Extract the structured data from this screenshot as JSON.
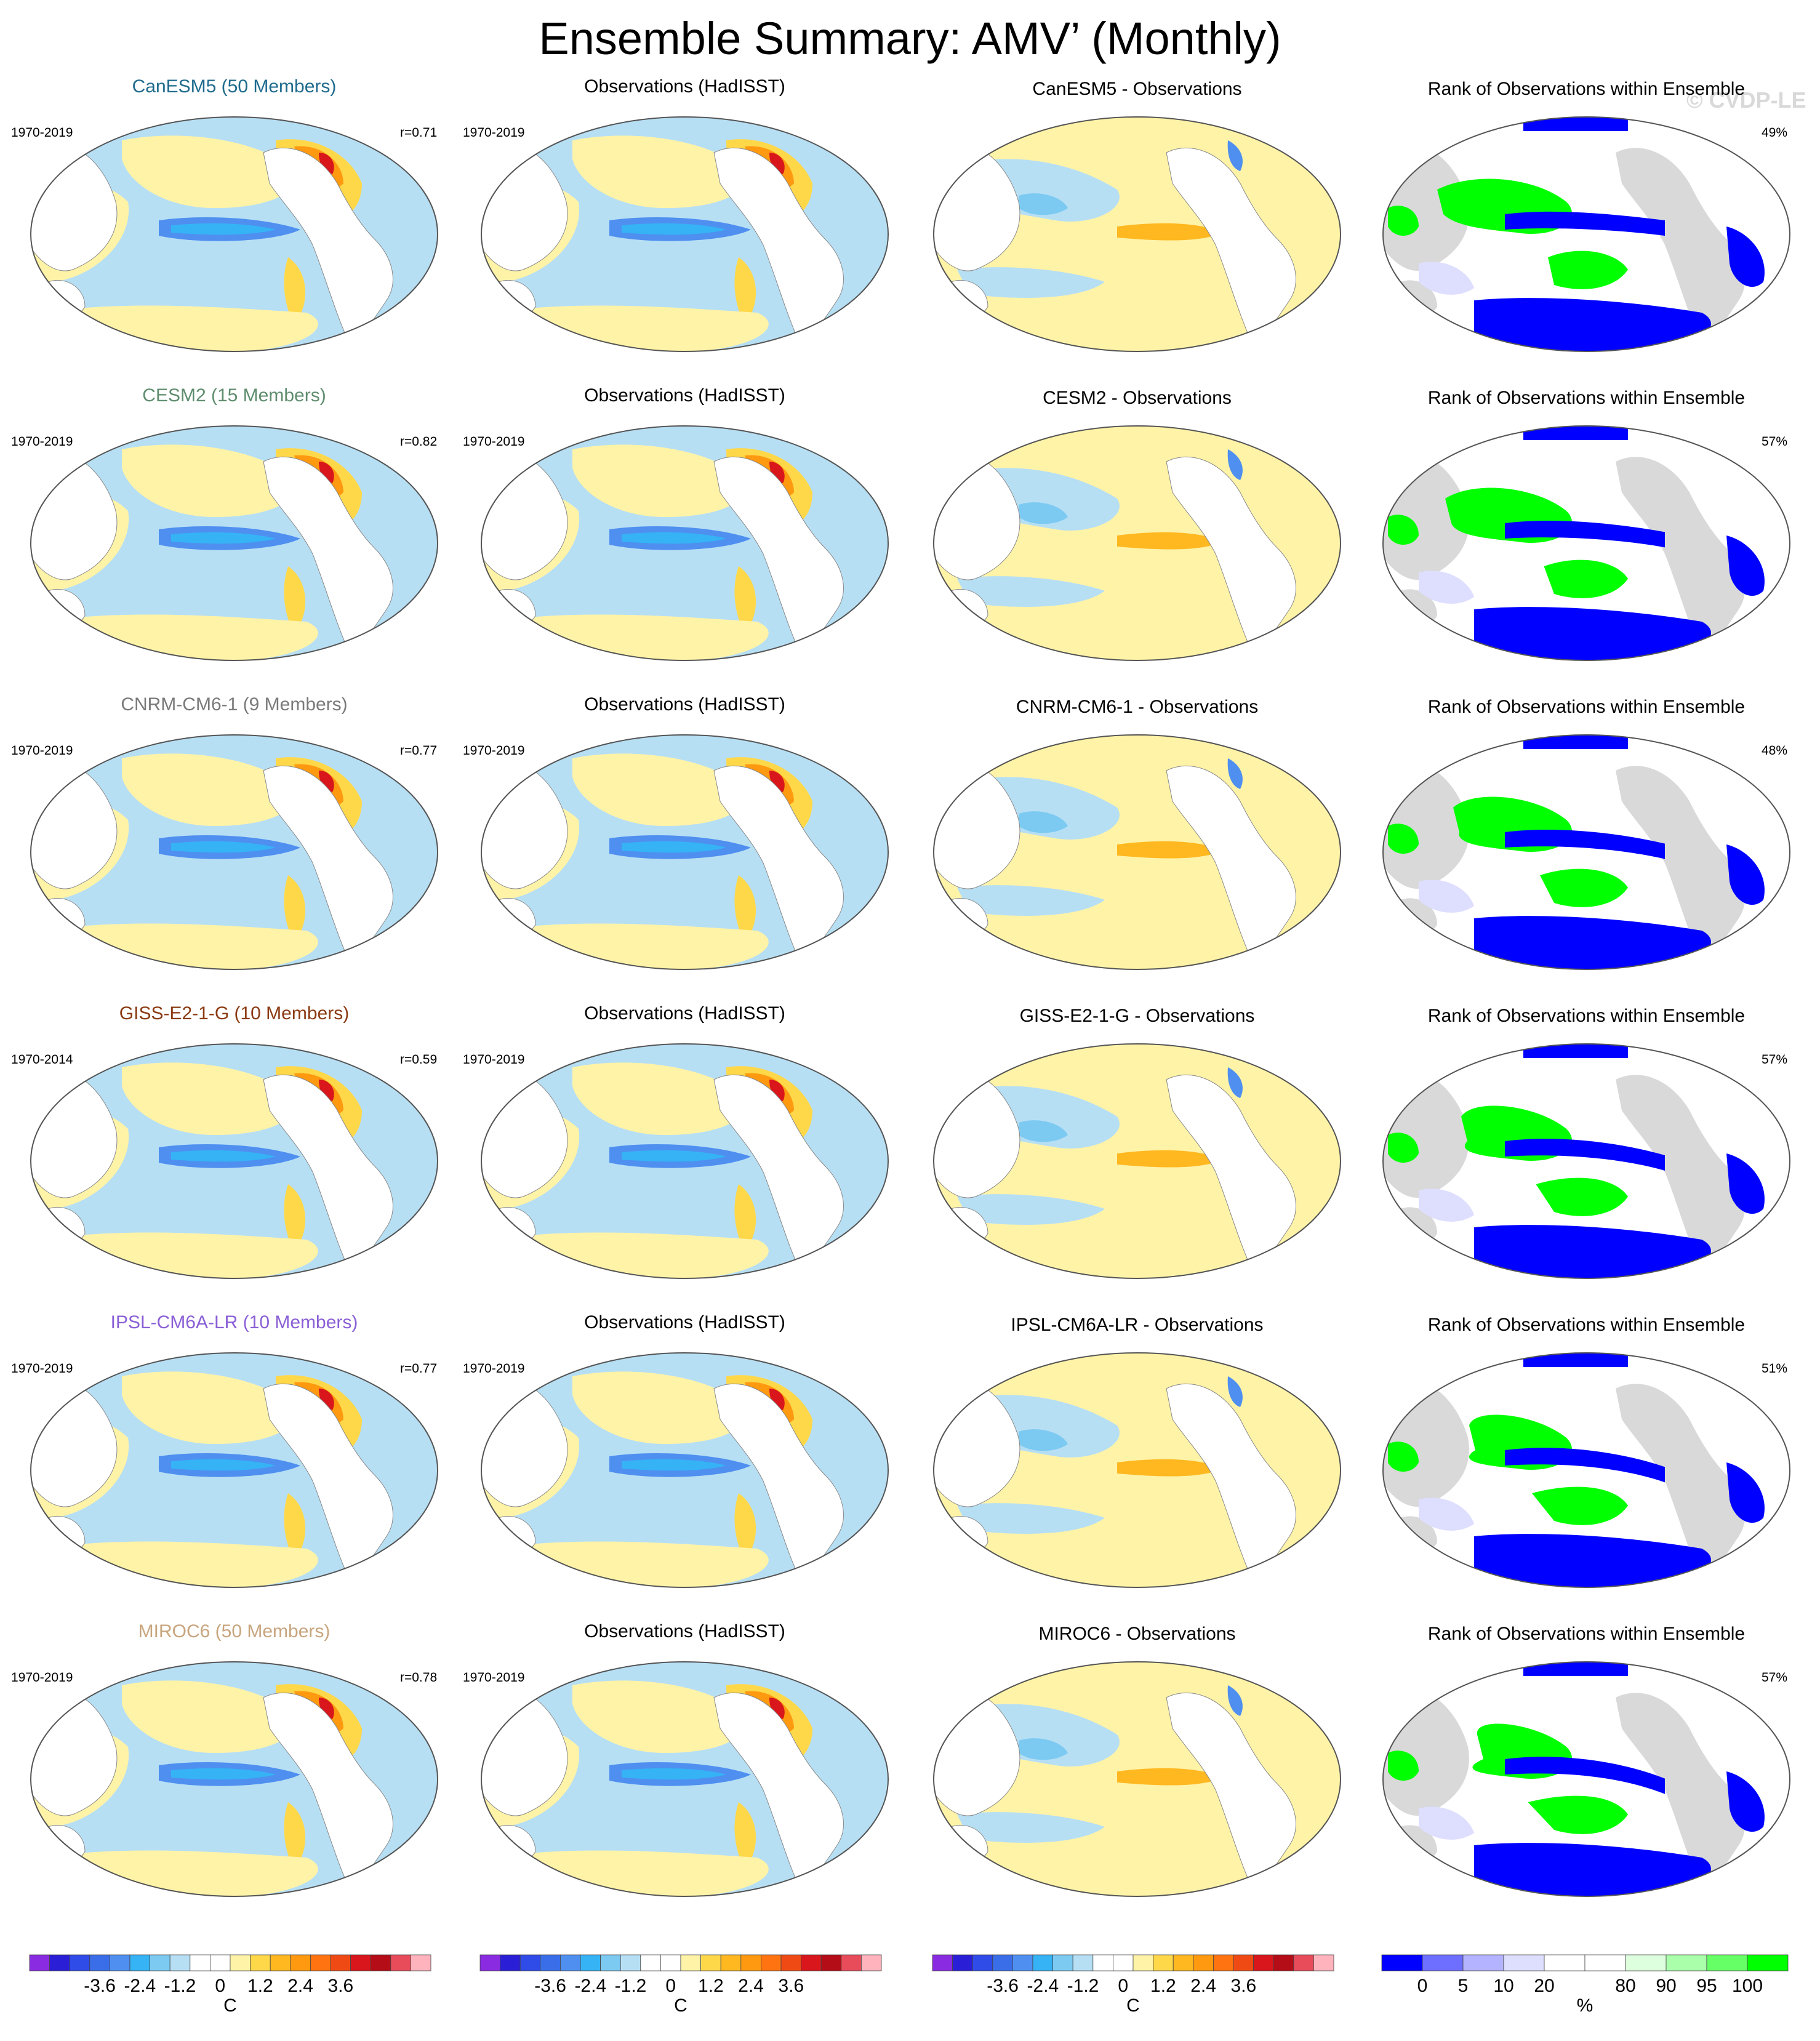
{
  "title": "Ensemble Summary: AMV’ (Monthly)",
  "watermark": "© CVDP-LE",
  "rows": [
    {
      "model_title": "CanESM5 (50 Members)",
      "model_color": "#1f6b8e",
      "model_period": "1970-2019",
      "corr": "r=0.71",
      "obs_title": "Observations (HadISST)",
      "obs_period": "1970-2019",
      "diff_title": "CanESM5 - Observations",
      "rank_title": "Rank of Observations within Ensemble",
      "rank_pct": "49%"
    },
    {
      "model_title": "CESM2 (15 Members)",
      "model_color": "#5f8d6e",
      "model_period": "1970-2019",
      "corr": "r=0.82",
      "obs_title": "Observations (HadISST)",
      "obs_period": "1970-2019",
      "diff_title": "CESM2 - Observations",
      "rank_title": "Rank of Observations within Ensemble",
      "rank_pct": "57%"
    },
    {
      "model_title": "CNRM-CM6-1 (9 Members)",
      "model_color": "#7a7a7a",
      "model_period": "1970-2019",
      "corr": "r=0.77",
      "obs_title": "Observations (HadISST)",
      "obs_period": "1970-2019",
      "diff_title": "CNRM-CM6-1 - Observations",
      "rank_title": "Rank of Observations within Ensemble",
      "rank_pct": "48%"
    },
    {
      "model_title": "GISS-E2-1-G (10 Members)",
      "model_color": "#8b3a12",
      "model_period": "1970-2014",
      "corr": "r=0.59",
      "obs_title": "Observations (HadISST)",
      "obs_period": "1970-2019",
      "diff_title": "GISS-E2-1-G - Observations",
      "rank_title": "Rank of Observations within Ensemble",
      "rank_pct": "57%"
    },
    {
      "model_title": "IPSL-CM6A-LR (10 Members)",
      "model_color": "#8a5fd6",
      "model_period": "1970-2019",
      "corr": "r=0.77",
      "obs_title": "Observations (HadISST)",
      "obs_period": "1970-2019",
      "diff_title": "IPSL-CM6A-LR - Observations",
      "rank_title": "Rank of Observations within Ensemble",
      "rank_pct": "51%"
    },
    {
      "model_title": "MIROC6 (50 Members)",
      "model_color": "#c8a57e",
      "model_period": "1970-2019",
      "corr": "r=0.78",
      "obs_title": "Observations (HadISST)",
      "obs_period": "1970-2019",
      "diff_title": "MIROC6 - Observations",
      "rank_title": "Rank of Observations within Ensemble",
      "rank_pct": "57%"
    }
  ],
  "sst_colorbar": {
    "colors": [
      "#8a2be2",
      "#2a1fd6",
      "#2f4be8",
      "#3a6ee8",
      "#4f8ff0",
      "#35b3f5",
      "#7ccaf2",
      "#b7dff4",
      "#ffffff",
      "#ffffff",
      "#fff3a8",
      "#ffd84a",
      "#ffb820",
      "#ff9a10",
      "#ff7410",
      "#f04a14",
      "#d8161c",
      "#b50d17",
      "#e84b5a",
      "#ffb3bd"
    ],
    "tick_labels": [
      "-3.6",
      "-2.4",
      "-1.2",
      "0",
      "1.2",
      "2.4",
      "3.6"
    ],
    "unit": "C"
  },
  "rank_colorbar": {
    "colors": [
      "#0000ff",
      "#6e6eff",
      "#b3b3ff",
      "#dedeff",
      "#ffffff",
      "#ffffff",
      "#ddffdd",
      "#aaffaa",
      "#66ff66",
      "#00ff00"
    ],
    "tick_labels": [
      "0",
      "5",
      "10",
      "20",
      "80",
      "90",
      "95",
      "100"
    ],
    "unit": "%"
  }
}
